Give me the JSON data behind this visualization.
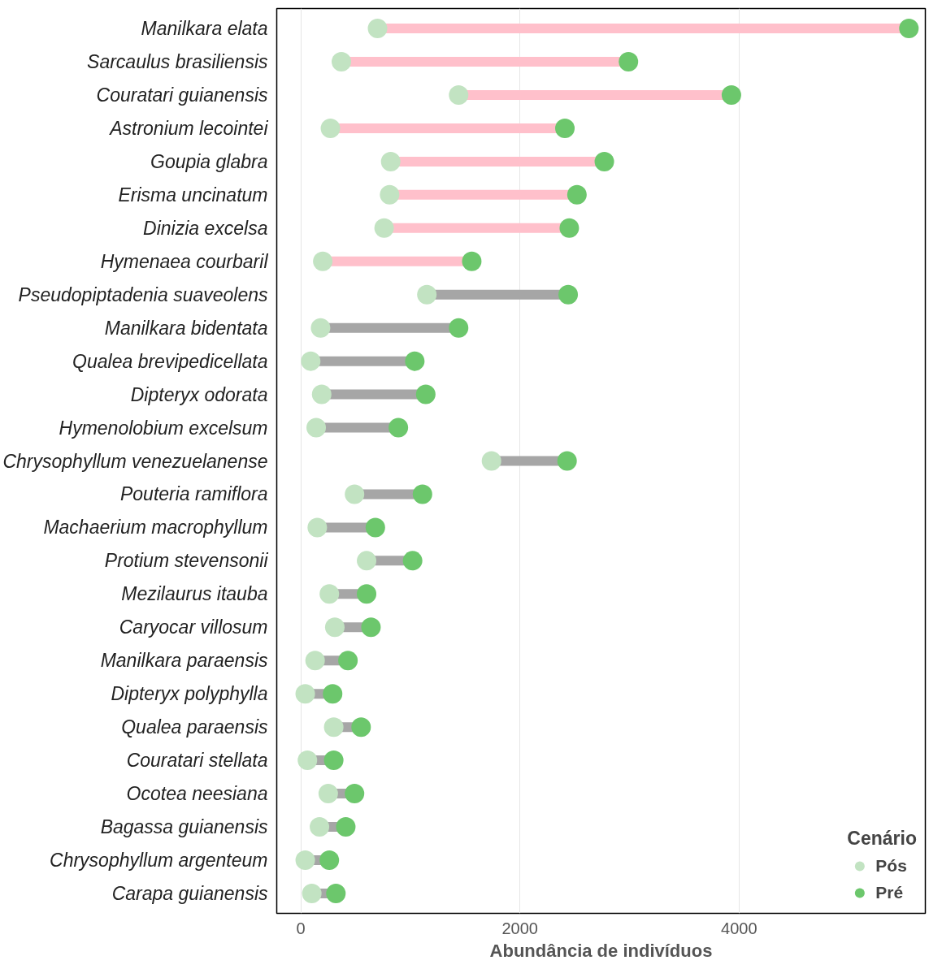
{
  "chart_data": {
    "type": "scatter",
    "orientation": "horizontal",
    "xlabel": "Abundância de indivíduos",
    "legend_title": "Cenário",
    "legend": "bottom right",
    "grid": "x",
    "marker": "circle",
    "categories": [
      "Manilkara elata",
      "Sarcaulus brasiliensis",
      "Couratari guianensis",
      "Astronium lecointei",
      "Goupia glabra",
      "Erisma uncinatum",
      "Dinizia excelsa",
      "Hymenaea courbaril",
      "Pseudopiptadenia suaveolens",
      "Manilkara bidentata",
      "Qualea brevipedicellata",
      "Dipteryx odorata",
      "Hymenolobium excelsum",
      "Chrysophyllum venezuelanense",
      "Pouteria ramiflora",
      "Machaerium macrophyllum",
      "Protium stevensonii",
      "Mezilaurus itauba",
      "Caryocar villosum",
      "Manilkara paraensis",
      "Dipteryx polyphylla",
      "Qualea paraensis",
      "Couratari stellata",
      "Ocotea neesiana",
      "Bagassa guianensis",
      "Chrysophyllum argenteum",
      "Carapa guianensis"
    ],
    "xlim": [
      -220,
      5700
    ],
    "xticks": [
      0,
      2000,
      4000
    ],
    "colors": [
      "#ffc0cb",
      "#ffc0cb",
      "#ffc0cb",
      "#ffc0cb",
      "#ffc0cb",
      "#ffc0cb",
      "#ffc0cb",
      "#ffc0cb",
      "#a6a6a6",
      "#a6a6a6",
      "#a6a6a6",
      "#a6a6a6",
      "#a6a6a6",
      "#a6a6a6",
      "#a6a6a6",
      "#a6a6a6",
      "#a6a6a6",
      "#a6a6a6",
      "#a6a6a6",
      "#a6a6a6",
      "#a6a6a6",
      "#a6a6a6",
      "#a6a6a6",
      "#a6a6a6",
      "#a6a6a6",
      "#a6a6a6",
      "#a6a6a6"
    ],
    "series": [
      {
        "name": "Pós",
        "color": "#c2e3c2",
        "values": [
          700,
          370,
          1440,
          270,
          820,
          810,
          760,
          200,
          1150,
          180,
          90,
          190,
          140,
          1740,
          490,
          150,
          600,
          260,
          310,
          130,
          40,
          300,
          60,
          250,
          170,
          40,
          100
        ]
      },
      {
        "name": "Pré",
        "color": "#6cc76c",
        "values": [
          5550,
          2990,
          3930,
          2410,
          2770,
          2520,
          2450,
          1560,
          2440,
          1440,
          1040,
          1140,
          890,
          2430,
          1110,
          680,
          1020,
          600,
          640,
          430,
          290,
          550,
          300,
          490,
          410,
          260,
          320
        ]
      }
    ]
  }
}
